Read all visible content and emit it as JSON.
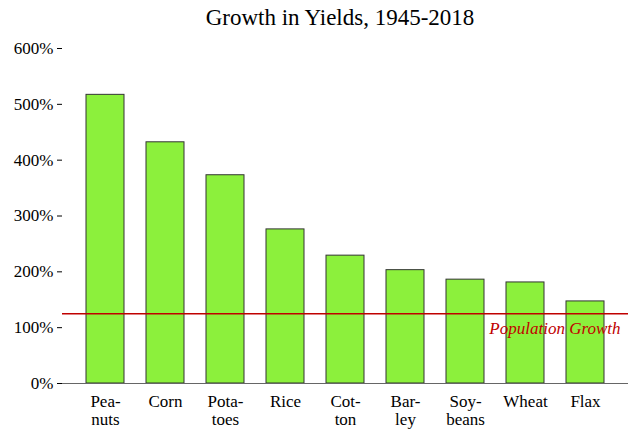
{
  "chart_data": {
    "type": "bar",
    "title": "Growth in Yields, 1945-2018",
    "categories": [
      "Pea-\nnuts",
      "Corn",
      "Pota-\ntoes",
      "Rice",
      "Cot-\nton",
      "Bar-\nley",
      "Soy-\nbeans",
      "Wheat",
      "Flax"
    ],
    "values": [
      517,
      432,
      373,
      276,
      229,
      203,
      186,
      181,
      147
    ],
    "color": "#8cf03c",
    "ylim": [
      0,
      600
    ],
    "yticks": [
      {
        "value": 0,
        "label": "0%"
      },
      {
        "value": 100,
        "label": "100%"
      },
      {
        "value": 200,
        "label": "200%"
      },
      {
        "value": 300,
        "label": "300%"
      },
      {
        "value": 400,
        "label": "400%"
      },
      {
        "value": 500,
        "label": "500%"
      },
      {
        "value": 600,
        "label": "600%"
      }
    ],
    "grid": false,
    "reference_lines": [
      {
        "label": "Population Growth",
        "value": 125,
        "color": "#c00000"
      }
    ]
  }
}
